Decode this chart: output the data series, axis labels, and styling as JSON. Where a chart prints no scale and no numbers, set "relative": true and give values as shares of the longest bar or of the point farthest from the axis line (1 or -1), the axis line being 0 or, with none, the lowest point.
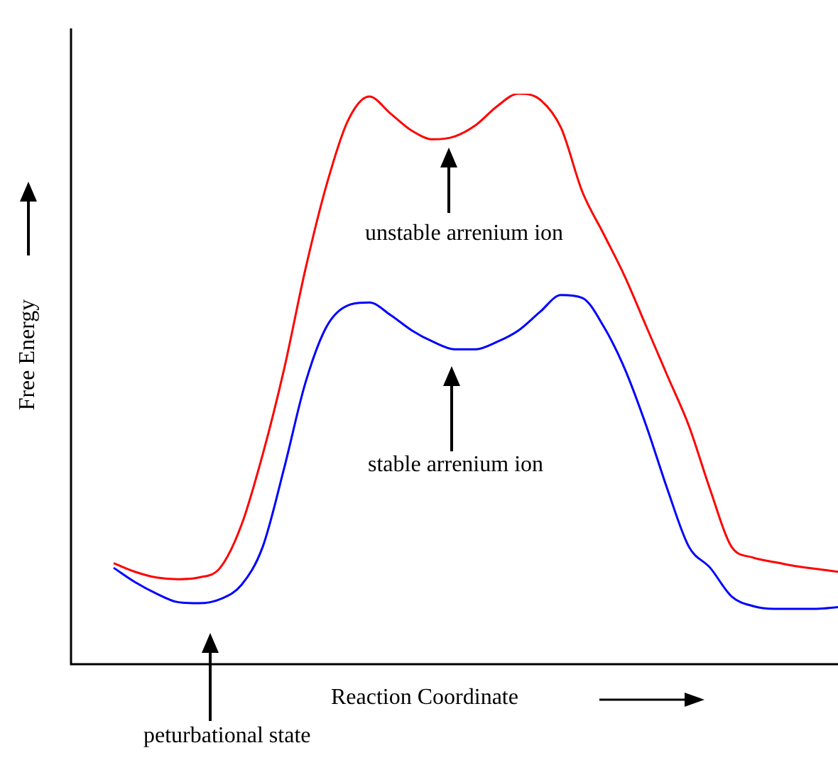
{
  "chart_data": {
    "type": "line",
    "relative": true,
    "xlabel": "Reaction Coordinate",
    "ylabel": "Free Energy",
    "legend": false,
    "categories": [
      null,
      null,
      null,
      null,
      null,
      null,
      null,
      null,
      null,
      null,
      null,
      null,
      null,
      null,
      null,
      null,
      null,
      null,
      null,
      null,
      null,
      null,
      null,
      null,
      null,
      null,
      null,
      null,
      null,
      null,
      null,
      null,
      null,
      null,
      null,
      null,
      null
    ],
    "series": [
      {
        "color": "#ff0000",
        "values": [
          null,
          null,
          0.177,
          0.162,
          0.152,
          0.149,
          0.152,
          0.169,
          0.244,
          0.368,
          0.517,
          0.692,
          0.841,
          0.953,
          0.995,
          0.965,
          0.935,
          0.92,
          0.925,
          0.945,
          0.978,
          1.0,
          0.99,
          0.94,
          0.828,
          0.754,
          0.679,
          0.592,
          0.505,
          0.418,
          0.306,
          0.206,
          0.187,
          0.179,
          0.172,
          0.167,
          0.162
        ]
      },
      {
        "color": "#0000ff",
        "values": [
          null,
          null,
          0.169,
          0.144,
          0.124,
          0.109,
          0.107,
          0.114,
          0.139,
          0.206,
          0.343,
          0.493,
          0.592,
          0.629,
          0.634,
          0.612,
          0.585,
          0.565,
          0.552,
          0.552,
          0.565,
          0.585,
          0.617,
          0.647,
          0.642,
          0.592,
          0.517,
          0.418,
          0.306,
          0.206,
          0.169,
          0.119,
          0.102,
          0.097,
          0.097,
          0.097,
          0.1
        ]
      }
    ],
    "annotations": [
      "unstable arrenium ion",
      "stable arrenium ion",
      "peturbational state"
    ]
  }
}
